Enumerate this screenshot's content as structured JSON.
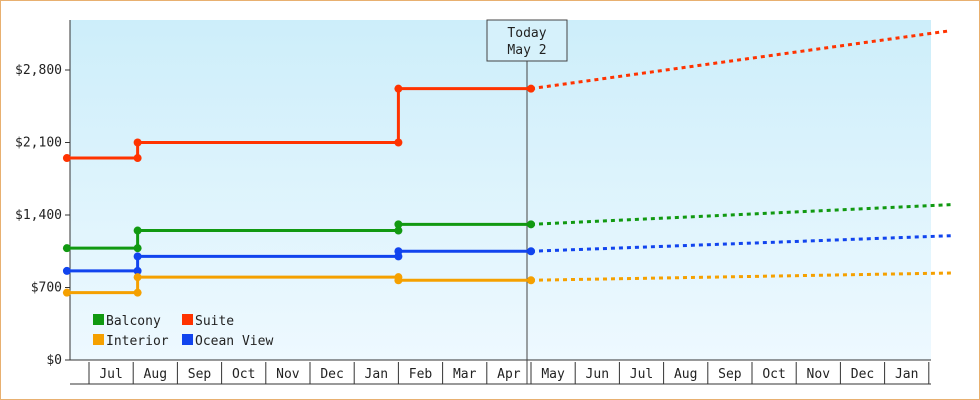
{
  "chart_data": {
    "type": "line",
    "y_ticks": [
      "$0",
      "$700",
      "$1,400",
      "$2,100",
      "$2,800"
    ],
    "ylim": [
      0,
      2800
    ],
    "months": [
      "Jul",
      "Aug",
      "Sep",
      "Oct",
      "Nov",
      "Dec",
      "Jan",
      "Feb",
      "Mar",
      "Apr",
      "May",
      "Jun",
      "Jul",
      "Aug",
      "Sep",
      "Oct",
      "Nov",
      "Dec",
      "Jan"
    ],
    "today_label": [
      "Today",
      "May 2"
    ],
    "today_x": 10.0,
    "series": [
      {
        "name": "Suite",
        "color": "#ff3300",
        "history": [
          [
            -1.0,
            1950
          ],
          [
            0.6,
            1950
          ],
          [
            0.6,
            2100
          ],
          [
            6.5,
            2100
          ],
          [
            6.5,
            2620
          ],
          [
            9.5,
            2620
          ]
        ],
        "markers": [
          [
            -1.0,
            1950
          ],
          [
            0.6,
            1950
          ],
          [
            0.6,
            2100
          ],
          [
            6.5,
            2100
          ],
          [
            6.5,
            2620
          ],
          [
            9.5,
            2620
          ]
        ],
        "forecast": [
          [
            9.5,
            2620
          ],
          [
            19.0,
            3180
          ]
        ]
      },
      {
        "name": "Balcony",
        "color": "#119911",
        "history": [
          [
            -1.0,
            1080
          ],
          [
            0.6,
            1080
          ],
          [
            0.6,
            1250
          ],
          [
            6.5,
            1250
          ],
          [
            6.5,
            1310
          ],
          [
            9.5,
            1310
          ]
        ],
        "markers": [
          [
            -1.0,
            1080
          ],
          [
            0.6,
            1080
          ],
          [
            0.6,
            1250
          ],
          [
            6.5,
            1250
          ],
          [
            6.5,
            1310
          ],
          [
            9.5,
            1310
          ]
        ],
        "forecast": [
          [
            9.5,
            1310
          ],
          [
            19.0,
            1500
          ]
        ]
      },
      {
        "name": "Ocean View",
        "color": "#1144ee",
        "history": [
          [
            -1.0,
            860
          ],
          [
            0.6,
            860
          ],
          [
            0.6,
            1000
          ],
          [
            6.5,
            1000
          ],
          [
            6.5,
            1050
          ],
          [
            9.5,
            1050
          ]
        ],
        "markers": [
          [
            -1.0,
            860
          ],
          [
            0.6,
            860
          ],
          [
            0.6,
            1000
          ],
          [
            6.5,
            1000
          ],
          [
            6.5,
            1050
          ],
          [
            9.5,
            1050
          ]
        ],
        "forecast": [
          [
            9.5,
            1050
          ],
          [
            19.0,
            1200
          ]
        ]
      },
      {
        "name": "Interior",
        "color": "#f5a000",
        "history": [
          [
            -1.0,
            650
          ],
          [
            0.6,
            650
          ],
          [
            0.6,
            800
          ],
          [
            6.5,
            800
          ],
          [
            6.5,
            770
          ],
          [
            9.5,
            770
          ]
        ],
        "markers": [
          [
            -1.0,
            650
          ],
          [
            0.6,
            650
          ],
          [
            0.6,
            800
          ],
          [
            6.5,
            800
          ],
          [
            6.5,
            770
          ],
          [
            9.5,
            770
          ]
        ],
        "forecast": [
          [
            9.5,
            770
          ],
          [
            19.0,
            840
          ]
        ]
      }
    ],
    "legend": {
      "placement": "bottom-left",
      "items": [
        {
          "name": "Balcony",
          "color": "#119911"
        },
        {
          "name": "Suite",
          "color": "#ff3300"
        },
        {
          "name": "Interior",
          "color": "#f5a000"
        },
        {
          "name": "Ocean View",
          "color": "#1144ee"
        }
      ]
    },
    "background_gradient": [
      "#cdeefa",
      "#eef9ff"
    ]
  }
}
